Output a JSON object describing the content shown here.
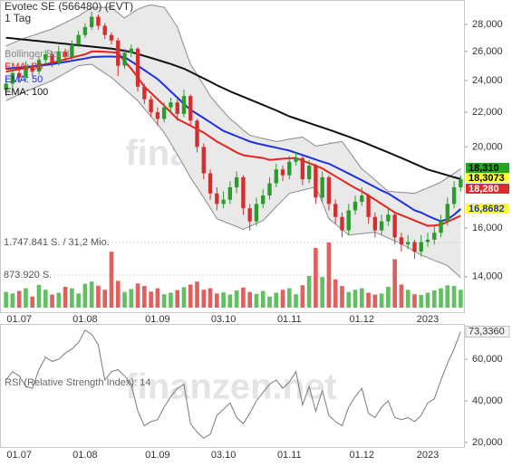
{
  "chart_data": {
    "type": "candlestick",
    "title": "Evotec SE (566480) (EVT)",
    "subtitle": "1 Tag",
    "watermark": "finanzen.net",
    "categories": [
      null,
      null,
      "01.07",
      null,
      null,
      null,
      null,
      null,
      null,
      null,
      null,
      null,
      "01.08",
      null,
      null,
      null,
      null,
      null,
      null,
      null,
      null,
      null,
      null,
      "01.09",
      null,
      null,
      null,
      null,
      null,
      null,
      null,
      null,
      null,
      "03.10",
      null,
      null,
      null,
      null,
      null,
      null,
      null,
      null,
      null,
      "01.11",
      null,
      null,
      null,
      null,
      null,
      null,
      null,
      null,
      null,
      null,
      "01.12",
      null,
      null,
      null,
      null,
      null,
      null,
      null,
      null,
      null,
      "2023",
      null,
      null,
      null,
      null,
      null
    ],
    "log_scale": true,
    "ylim": [
      12700,
      29800
    ],
    "yticks": [
      {
        "value": 28000,
        "label": "28,000"
      },
      {
        "value": 26000,
        "label": "26,000"
      },
      {
        "value": 24000,
        "label": "24,000"
      },
      {
        "value": 22000,
        "label": "22,000"
      },
      {
        "value": 20000,
        "label": "20,000"
      },
      {
        "value": 16000,
        "label": "16,000"
      },
      {
        "value": 14000,
        "label": "14,000"
      }
    ],
    "up_color": "#2b9b2b",
    "down_color": "#d42f2f",
    "open": [
      23400,
      23800,
      24500,
      24200,
      25000,
      24600,
      25400,
      25800,
      25200,
      26000,
      25600,
      26500,
      27200,
      27800,
      28600,
      27900,
      27200,
      26800,
      25000,
      25900,
      26200,
      23600,
      22800,
      22000,
      21600,
      22300,
      22600,
      21900,
      23000,
      21500,
      20000,
      18600,
      17600,
      17100,
      17300,
      17900,
      18400,
      16900,
      16300,
      17100,
      17500,
      18100,
      18800,
      18500,
      19200,
      19400,
      18300,
      19000,
      17400,
      18400,
      17100,
      16500,
      15900,
      16800,
      17200,
      17500,
      16500,
      15900,
      16300,
      16600,
      15600,
      15300,
      15400,
      15000,
      15400,
      15500,
      15800,
      16300,
      17100,
      17900
    ],
    "high": [
      24100,
      24800,
      24700,
      25300,
      25200,
      25700,
      26100,
      26000,
      26400,
      26200,
      26800,
      27500,
      28100,
      29000,
      28800,
      28100,
      27400,
      27000,
      26200,
      26500,
      26300,
      23800,
      23000,
      22300,
      22600,
      22900,
      22800,
      23400,
      23100,
      21600,
      20200,
      18800,
      17900,
      17700,
      18200,
      18700,
      18500,
      17100,
      17400,
      17800,
      18400,
      19100,
      19000,
      19500,
      19700,
      19500,
      19300,
      19100,
      18700,
      18500,
      17300,
      16700,
      17100,
      17500,
      17900,
      17600,
      16700,
      16600,
      16900,
      16700,
      15800,
      15700,
      15500,
      15700,
      15800,
      16100,
      16600,
      17400,
      18200,
      18500
    ],
    "low": [
      23000,
      23500,
      23900,
      24000,
      24300,
      24400,
      25100,
      24900,
      25000,
      25300,
      25400,
      26300,
      27000,
      27600,
      27600,
      26900,
      26500,
      24300,
      24800,
      25600,
      23300,
      22500,
      21700,
      21200,
      21400,
      22000,
      21500,
      21700,
      21200,
      19700,
      18300,
      17300,
      16800,
      16900,
      17100,
      17600,
      16600,
      15900,
      16100,
      16900,
      17300,
      17900,
      18200,
      18300,
      19000,
      18000,
      18100,
      17100,
      17200,
      16800,
      16200,
      15600,
      15700,
      16600,
      17000,
      16200,
      15600,
      15700,
      16100,
      15300,
      15000,
      15100,
      14700,
      14800,
      15200,
      15300,
      15600,
      16100,
      16900,
      17700
    ],
    "close": [
      23800,
      24500,
      24200,
      25000,
      24600,
      25400,
      25800,
      25200,
      26000,
      25600,
      26500,
      27200,
      27800,
      28600,
      27900,
      27200,
      26800,
      25000,
      25900,
      26200,
      23600,
      22800,
      22000,
      21600,
      22300,
      22600,
      21900,
      23000,
      21500,
      20000,
      18600,
      17600,
      17100,
      17300,
      17900,
      18400,
      16900,
      16300,
      17100,
      17500,
      18100,
      18800,
      18500,
      19200,
      19400,
      18300,
      19000,
      17400,
      18400,
      17100,
      16500,
      15900,
      16800,
      17200,
      17500,
      16500,
      15900,
      16300,
      16600,
      15600,
      15300,
      15400,
      15000,
      15400,
      15500,
      15800,
      16300,
      17100,
      17900,
      18310
    ],
    "bollinger": {
      "name": "Bollinger Band",
      "color": "#8a8a8a",
      "fill": "#e9e9e9",
      "upper": [
        26400,
        26600,
        26800,
        27000,
        27160,
        27320,
        27490,
        27650,
        27900,
        28150,
        28400,
        28650,
        29000,
        29350,
        29350,
        29350,
        29350,
        28900,
        28500,
        28850,
        29200,
        29400,
        29550,
        29450,
        29350,
        28600,
        27800,
        26400,
        25100,
        24400,
        23700,
        23000,
        22500,
        22050,
        21600,
        21300,
        20950,
        20650,
        20560,
        20470,
        20390,
        20300,
        20360,
        20430,
        20490,
        20550,
        20300,
        20050,
        20110,
        20180,
        20240,
        20300,
        19800,
        19300,
        18830,
        18550,
        18270,
        17980,
        17700,
        17680,
        17650,
        17630,
        17600,
        17740,
        17870,
        18010,
        18150,
        18380,
        18600,
        18830
      ],
      "lower": [
        22700,
        22900,
        23100,
        23300,
        23470,
        23650,
        23820,
        24000,
        24250,
        24500,
        24750,
        25000,
        25050,
        25100,
        24800,
        24500,
        24200,
        23820,
        23450,
        23070,
        22700,
        22220,
        21750,
        21270,
        20800,
        20200,
        19590,
        18990,
        18380,
        17890,
        17400,
        16910,
        16420,
        16300,
        16180,
        16070,
        15950,
        16080,
        16210,
        16340,
        16650,
        16970,
        17280,
        17600,
        17680,
        17760,
        17840,
        17920,
        17170,
        16420,
        16180,
        15940,
        15700,
        15730,
        15760,
        15790,
        15820,
        15700,
        15570,
        15450,
        15320,
        15170,
        15010,
        14860,
        14750,
        14640,
        14540,
        14430,
        14200,
        13970
      ]
    },
    "series": [
      {
        "name": "EMA: 38",
        "color": "#e4241d",
        "values": [
          24600,
          24680,
          24760,
          24840,
          24920,
          25000,
          25100,
          25200,
          25320,
          25440,
          25560,
          25680,
          25800,
          26000,
          26000,
          25980,
          25950,
          25900,
          25300,
          24800,
          24200,
          23600,
          23200,
          22800,
          22400,
          22000,
          21600,
          21400,
          21200,
          21000,
          20800,
          20550,
          20300,
          20100,
          19900,
          19700,
          19550,
          19500,
          19450,
          19400,
          19300,
          19330,
          19360,
          19380,
          19400,
          19260,
          19130,
          19000,
          18850,
          18650,
          18450,
          18250,
          18050,
          17870,
          17700,
          17500,
          17300,
          17100,
          16900,
          16700,
          16580,
          16460,
          16340,
          16220,
          16100,
          16120,
          16150,
          16280,
          16420,
          16550
        ]
      },
      {
        "name": "EMA: 50",
        "color": "#1f30d8",
        "values": [
          24800,
          24840,
          24880,
          24920,
          24960,
          25000,
          25050,
          25100,
          25180,
          25260,
          25340,
          25420,
          25500,
          25600,
          25620,
          25640,
          25640,
          25620,
          25600,
          25300,
          25000,
          24700,
          24400,
          24100,
          23700,
          23300,
          22900,
          22500,
          22150,
          21900,
          21650,
          21400,
          21150,
          20900,
          20750,
          20600,
          20450,
          20300,
          20200,
          20120,
          20040,
          19960,
          19880,
          19800,
          19680,
          19560,
          19440,
          19320,
          19200,
          19100,
          18930,
          18760,
          18590,
          18420,
          18250,
          18080,
          17910,
          17740,
          17600,
          17400,
          17200,
          17000,
          16800,
          16700,
          16550,
          16420,
          16300,
          16400,
          16600,
          16868.2
        ]
      },
      {
        "name": "EMA: 100",
        "color": "#111111",
        "values": [
          27000,
          26950,
          26900,
          26850,
          26800,
          26750,
          26700,
          26650,
          26600,
          26550,
          26500,
          26450,
          26400,
          26350,
          26300,
          26250,
          26200,
          26130,
          26050,
          25950,
          25820,
          25680,
          25540,
          25400,
          25260,
          25120,
          24960,
          24800,
          24580,
          24360,
          24140,
          23920,
          23700,
          23500,
          23300,
          23130,
          22960,
          22790,
          22620,
          22450,
          22280,
          22110,
          21930,
          21750,
          21620,
          21490,
          21360,
          21230,
          21100,
          20970,
          20840,
          20700,
          20570,
          20430,
          20300,
          20150,
          20000,
          19850,
          19700,
          19550,
          19400,
          19250,
          19100,
          18950,
          18800,
          18700,
          18600,
          18500,
          18400,
          18307.3
        ]
      }
    ],
    "last_labels": [
      {
        "value": 18310,
        "label": "18,310",
        "bg": "#22a522",
        "fg": "#000000"
      },
      {
        "value": 18307.3,
        "label": "18,3073",
        "bg": "#ffff33",
        "fg": "#000000"
      },
      {
        "value": 18280,
        "label": "18,280",
        "bg": "#d42f2f",
        "fg": "#ffffff"
      },
      {
        "value": 16868.2,
        "label": "16,8682",
        "bg": "#ffff33",
        "fg": "#1f30d8"
      }
    ],
    "volume": {
      "ylim": [
        0,
        1747841
      ],
      "up_color": "#62c062",
      "down_color": "#e06060",
      "ticks": [
        {
          "value": 873920,
          "label": "873.920 S."
        },
        {
          "value": 1747841,
          "label": "1.747.841 S. / 31,2 Mio."
        }
      ],
      "values": [
        420000,
        380000,
        450000,
        520000,
        300000,
        610000,
        480000,
        350000,
        400000,
        560000,
        520000,
        380000,
        640000,
        700000,
        590000,
        480000,
        1500000,
        720000,
        420000,
        500000,
        650000,
        580000,
        430000,
        520000,
        360000,
        400000,
        470000,
        550000,
        620000,
        700000,
        480000,
        520000,
        380000,
        410000,
        350000,
        460000,
        540000,
        420000,
        370000,
        450000,
        300000,
        400000,
        480000,
        520000,
        360000,
        600000,
        850000,
        1600000,
        820000,
        1747841,
        760000,
        580000,
        420000,
        480000,
        520000,
        400000,
        350000,
        380000,
        560000,
        1300000,
        620000,
        480000,
        360000,
        340000,
        400000,
        460000,
        520000,
        600000,
        580000,
        480000
      ]
    },
    "rsi": {
      "name": "RSI (Relative Strength Index): 14",
      "color": "#7a7a7a",
      "ylim": [
        17.8,
        77
      ],
      "yticks": [
        {
          "value": 60,
          "label": "60,000"
        },
        {
          "value": 40,
          "label": "40,000"
        },
        {
          "value": 20,
          "label": "20,000"
        }
      ],
      "values": [
        50,
        54,
        52,
        47,
        46,
        55,
        61,
        59,
        60,
        63,
        65,
        68,
        74,
        72,
        67,
        50,
        54,
        55,
        52,
        48,
        35,
        28,
        30,
        31,
        37,
        42,
        46,
        48,
        29,
        25,
        22,
        24,
        33,
        36,
        39,
        32,
        29,
        34,
        40,
        44,
        48,
        50,
        46,
        49,
        54,
        38,
        47,
        35,
        45,
        33,
        30,
        28,
        37,
        42,
        46,
        34,
        32,
        37,
        40,
        32,
        31,
        32,
        30,
        33,
        39,
        41,
        50,
        58,
        65,
        73.336
      ],
      "value_label": "73,3360"
    }
  }
}
